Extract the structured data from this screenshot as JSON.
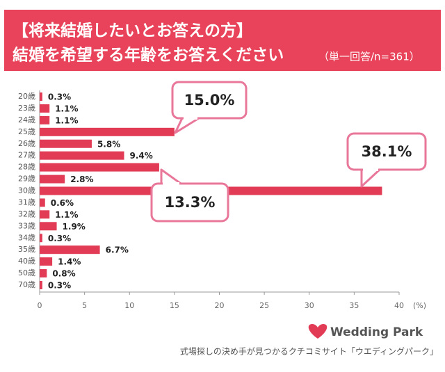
{
  "chart_data": {
    "type": "bar",
    "orientation": "horizontal",
    "title_lines": [
      "【将来結婚したいとお答えの方】",
      "結婚を希望する年齢をお答えください"
    ],
    "note": "（単一回答/n=361）",
    "x_unit_label": "(%)",
    "categories": [
      "20歳",
      "23歳",
      "24歳",
      "25歳",
      "26歳",
      "27歳",
      "28歳",
      "29歳",
      "30歳",
      "31歳",
      "32歳",
      "33歳",
      "34歳",
      "35歳",
      "40歳",
      "50歳",
      "70歳"
    ],
    "values": [
      0.3,
      1.1,
      1.1,
      15.0,
      5.8,
      9.4,
      13.3,
      2.8,
      38.1,
      0.6,
      1.1,
      1.9,
      0.3,
      6.7,
      1.4,
      0.8,
      0.3
    ],
    "value_labels": [
      "0.3%",
      "1.1%",
      "1.1%",
      "15.0%",
      "5.8%",
      "9.4%",
      "13.3%",
      "2.8%",
      "38.1%",
      "0.6%",
      "1.1%",
      "1.9%",
      "0.3%",
      "6.7%",
      "1.4%",
      "0.8%",
      "0.3%"
    ],
    "color": "#e23b55",
    "xlim": [
      0,
      40
    ],
    "xticks": [
      0,
      5,
      10,
      15,
      20,
      25,
      30,
      35,
      40
    ]
  },
  "footer": {
    "brand": "Wedding Park",
    "tagline": "式場探しの決め手が見つかるクチコミサイト「ウエディングパーク」"
  }
}
